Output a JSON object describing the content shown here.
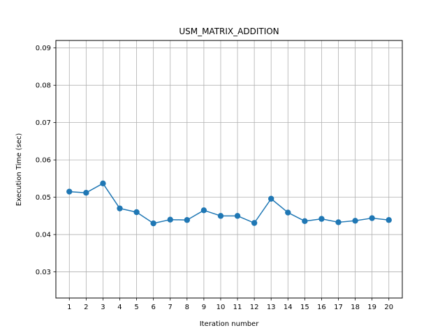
{
  "chart_data": {
    "type": "line",
    "title": "USM_MATRIX_ADDITION",
    "xlabel": "Iteration number",
    "ylabel": "Execution Time (sec)",
    "x": [
      1,
      2,
      3,
      4,
      5,
      6,
      7,
      8,
      9,
      10,
      11,
      12,
      13,
      14,
      15,
      16,
      17,
      18,
      19,
      20
    ],
    "series": [
      {
        "values": [
          0.0515,
          0.0512,
          0.0537,
          0.047,
          0.046,
          0.043,
          0.044,
          0.0439,
          0.0465,
          0.045,
          0.045,
          0.0431,
          0.0496,
          0.0459,
          0.0436,
          0.0442,
          0.0433,
          0.0437,
          0.0444,
          0.0439
        ],
        "color": "#1f77b4",
        "marker": "circle"
      }
    ],
    "xlim": [
      0.2,
      20.8
    ],
    "ylim": [
      0.023,
      0.092
    ],
    "yticks": [
      "0.03",
      "0.04",
      "0.05",
      "0.06",
      "0.07",
      "0.08",
      "0.09"
    ],
    "xticks": [
      "1",
      "2",
      "3",
      "4",
      "5",
      "6",
      "7",
      "8",
      "9",
      "10",
      "11",
      "12",
      "13",
      "14",
      "15",
      "16",
      "17",
      "18",
      "19",
      "20"
    ],
    "grid": true
  }
}
